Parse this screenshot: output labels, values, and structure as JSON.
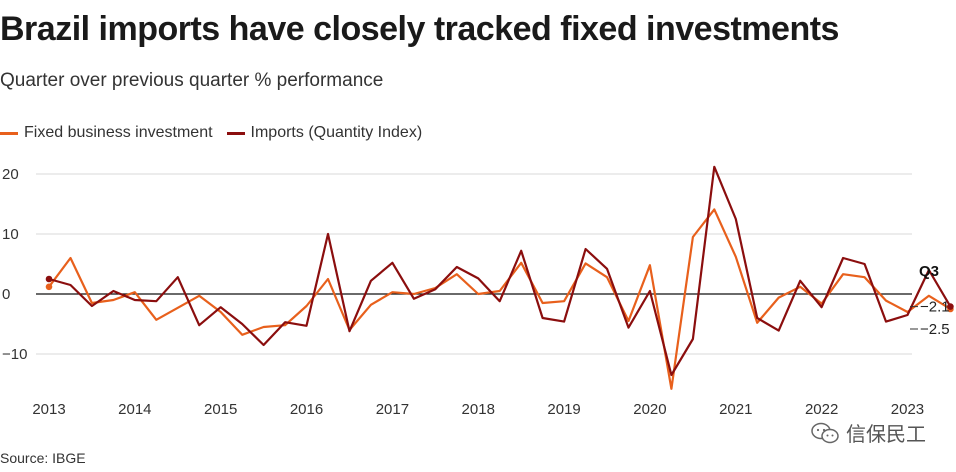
{
  "title": "Brazil imports have closely tracked fixed investments",
  "subtitle": "Quarter over previous quarter % performance",
  "source": "Source: IBGE",
  "watermark": "信保民工",
  "chart_data": {
    "type": "line",
    "ylim": [
      -16,
      22
    ],
    "yticks": [
      20,
      10,
      0,
      -10
    ],
    "ytick_labels": [
      "20",
      "10",
      "0",
      "−10"
    ],
    "xlim": [
      2013.0,
      2024.2
    ],
    "xticks": [
      2013,
      2014,
      2015,
      2016,
      2017,
      2018,
      2019,
      2020,
      2021,
      2022,
      2023
    ],
    "xtick_labels": [
      "2013",
      "2014",
      "2015",
      "2016",
      "2017",
      "2018",
      "2019",
      "2020",
      "2021",
      "2022",
      "2023"
    ],
    "grid": true,
    "legend_position": "top-left",
    "x": [
      2013.0,
      2013.25,
      2013.5,
      2013.75,
      2014.0,
      2014.25,
      2014.5,
      2014.75,
      2015.0,
      2015.25,
      2015.5,
      2015.75,
      2016.0,
      2016.25,
      2016.5,
      2016.75,
      2017.0,
      2017.25,
      2017.5,
      2017.75,
      2018.0,
      2018.25,
      2018.5,
      2018.75,
      2019.0,
      2019.25,
      2019.5,
      2019.75,
      2020.0,
      2020.25,
      2020.5,
      2020.75,
      2021.0,
      2021.25,
      2021.5,
      2021.75,
      2022.0,
      2022.25,
      2022.5,
      2022.75,
      2023.0,
      2023.25,
      2023.5
    ],
    "series": [
      {
        "name": "Fixed business investment",
        "color": "#e8601c",
        "values": [
          1.2,
          6.0,
          -1.5,
          -1.0,
          0.3,
          -4.3,
          -2.3,
          -0.3,
          -3.0,
          -6.8,
          -5.5,
          -5.2,
          -2.0,
          2.5,
          -6.0,
          -1.8,
          0.3,
          0.0,
          1.0,
          3.3,
          0.0,
          0.5,
          5.2,
          -1.5,
          -1.2,
          5.1,
          2.8,
          -4.5,
          4.8,
          -15.8,
          9.5,
          14.1,
          6.2,
          -4.8,
          -0.6,
          1.2,
          -1.6,
          3.3,
          2.8,
          -1.1,
          -3.0,
          -0.3,
          -2.5
        ]
      },
      {
        "name": "Imports (Quantity Index)",
        "color": "#8b0e0e",
        "values": [
          2.5,
          1.5,
          -2.0,
          0.5,
          -1.0,
          -1.2,
          2.8,
          -5.2,
          -2.2,
          -5.0,
          -8.5,
          -4.7,
          -5.3,
          10.0,
          -6.2,
          2.2,
          5.2,
          -0.8,
          0.8,
          4.5,
          2.6,
          -1.2,
          7.2,
          -4.0,
          -4.6,
          7.5,
          4.2,
          -5.6,
          0.5,
          -13.5,
          -7.5,
          21.2,
          12.5,
          -4.0,
          -6.1,
          2.2,
          -2.2,
          6.0,
          5.0,
          -4.6,
          -3.5,
          4.0,
          -2.1
        ]
      }
    ],
    "end_labels": {
      "period": "Q3",
      "imports": "−2.1",
      "investment": "−2.5"
    }
  }
}
